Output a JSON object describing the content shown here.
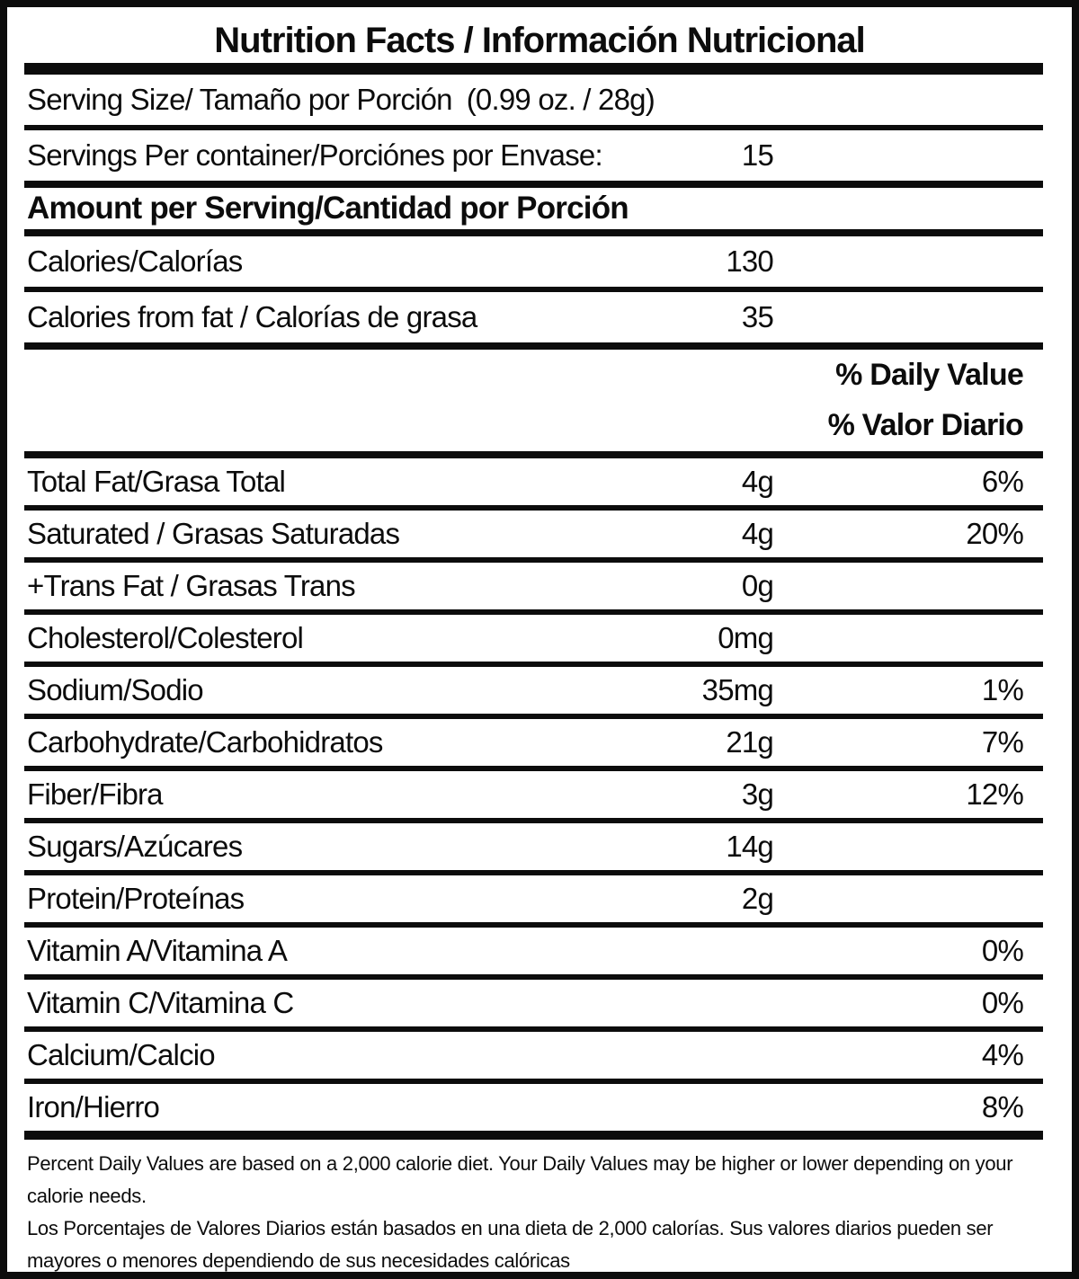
{
  "colors": {
    "ink": "#0c0c0c",
    "background": "#ffffff"
  },
  "header": {
    "title": "Nutrition Facts / Información Nutricional"
  },
  "serving_info": {
    "serving_size_label": "Serving Size/ Tamaño por Porción",
    "serving_size_value": "(0.99 oz. / 28g)",
    "servings_per_container_label": "Servings Per container/Porciónes por Envase:",
    "servings_per_container_value": "15"
  },
  "amount_per_serving_header": "Amount per Serving/Cantidad por Porción",
  "calories_rows": [
    {
      "label": "Calories/Calorías",
      "amount": "130"
    },
    {
      "label": "Calories from fat / Calorías de grasa",
      "amount": "35"
    }
  ],
  "daily_value_header": {
    "en": "% Daily Value",
    "es": "% Valor Diario"
  },
  "nutrients": [
    {
      "label": "Total Fat/Grasa Total",
      "amount": "4g",
      "dv": "6%"
    },
    {
      "label": "Saturated / Grasas Saturadas",
      "amount": "4g",
      "dv": "20%"
    },
    {
      "label": "+Trans Fat / Grasas Trans",
      "amount": "0g",
      "dv": ""
    },
    {
      "label": "Cholesterol/Colesterol",
      "amount": "0mg",
      "dv": ""
    },
    {
      "label": "Sodium/Sodio",
      "amount": "35mg",
      "dv": "1%"
    },
    {
      "label": "Carbohydrate/Carbohidratos",
      "amount": "21g",
      "dv": "7%"
    },
    {
      "label": "Fiber/Fibra",
      "amount": "3g",
      "dv": "12%"
    },
    {
      "label": "Sugars/Azúcares",
      "amount": "14g",
      "dv": ""
    },
    {
      "label": "Protein/Proteínas",
      "amount": "2g",
      "dv": ""
    },
    {
      "label": "Vitamin A/Vitamina A",
      "amount": "",
      "dv": "0%"
    },
    {
      "label": "Vitamin C/Vitamina C",
      "amount": "",
      "dv": "0%"
    },
    {
      "label": "Calcium/Calcio",
      "amount": "",
      "dv": "4%"
    },
    {
      "label": "Iron/Hierro",
      "amount": "",
      "dv": "8%"
    }
  ],
  "footnotes": {
    "en": "Percent Daily Values are based on a 2,000 calorie diet. Your Daily Values may be higher or lower depending on your calorie needs.",
    "es": "Los Porcentajes de Valores Diarios están basados en una dieta de 2,000 calorías. Sus valores diarios pueden ser mayores o menores dependiendo de sus necesidades calóricas"
  }
}
